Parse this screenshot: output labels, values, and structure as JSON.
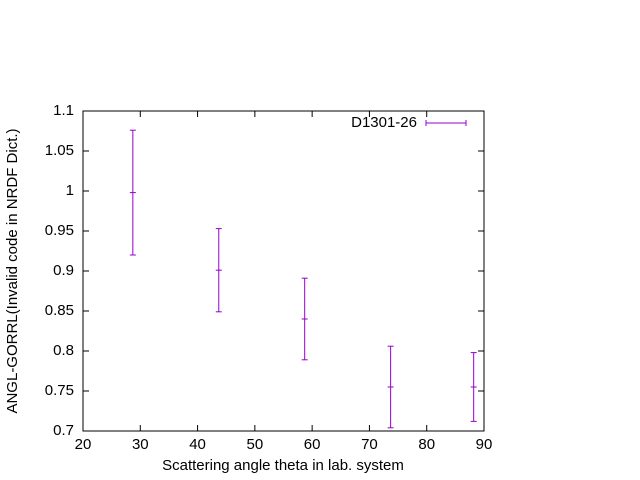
{
  "chart_data": {
    "type": "errorbar",
    "xlabel": "Scattering angle theta in lab. system",
    "ylabel": "ANGL-GORRL(Invalid code in NRDF Dict.)",
    "x": [
      28.7,
      43.7,
      58.7,
      73.7,
      88.2
    ],
    "series": [
      {
        "name": "D1301-26",
        "color": "#9400d3",
        "values": [
          0.998,
          0.901,
          0.84,
          0.755,
          0.755
        ],
        "errors": [
          0.078,
          0.052,
          0.051,
          0.051,
          0.043
        ]
      }
    ],
    "xlim": [
      20,
      90
    ],
    "xticks": [
      20,
      30,
      40,
      50,
      60,
      70,
      80,
      90
    ],
    "ylim": [
      0.7,
      1.1
    ],
    "yticks": [
      0.7,
      0.75,
      0.8,
      0.85,
      0.9,
      0.95,
      1,
      1.05,
      1.1
    ],
    "legend": "top right"
  }
}
